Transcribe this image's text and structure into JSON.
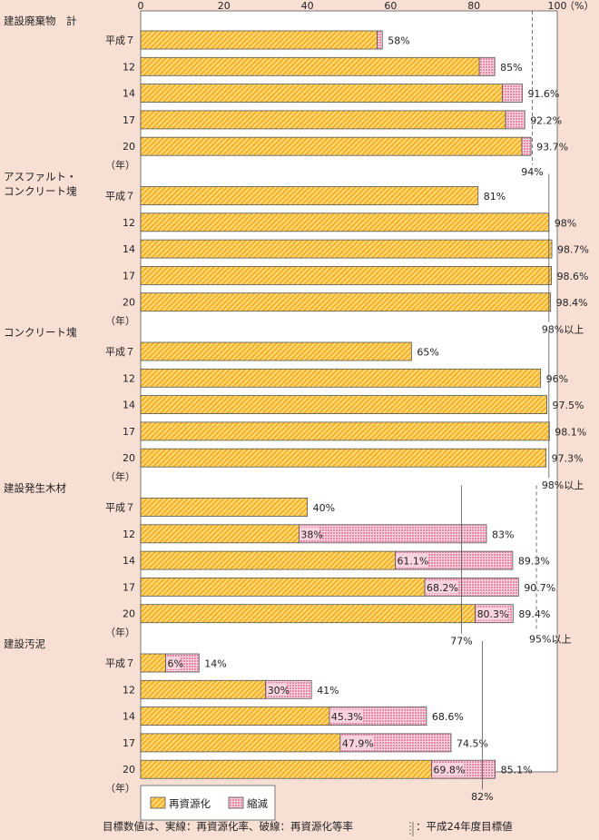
{
  "chart_data": {
    "type": "bar",
    "orientation": "horizontal",
    "stacked": true,
    "xlim": [
      0,
      100
    ],
    "xticks": [
      "0",
      "20",
      "40",
      "60",
      "80",
      "100"
    ],
    "xunit": "（%）",
    "year_unit": "（年）",
    "legend": {
      "placement": "bottom-left",
      "entries": [
        "再資源化",
        "縮減"
      ]
    },
    "colors": {
      "recycle": "#f6b52c",
      "reduction": "#ee87a6",
      "background": "#f8dfd4"
    },
    "groups": [
      {
        "name": "建設廃棄物　計",
        "name_lines": [
          "建設廃棄物　計"
        ],
        "years": [
          "平成７",
          "12",
          "14",
          "17",
          "20"
        ],
        "recycle": [
          56.8,
          81.3,
          86.8,
          87.6,
          91.5
        ],
        "total": [
          58,
          85,
          91.6,
          92.2,
          93.7
        ],
        "total_labels": [
          "58%",
          "85%",
          "91.6%",
          "92.2%",
          "93.7%"
        ],
        "recycle_labels": [],
        "targets": [
          {
            "value": 94,
            "style": "dashed",
            "label": "94%"
          }
        ]
      },
      {
        "name": "アスファルト・コンクリート塊",
        "name_lines": [
          "アスファルト・",
          "コンクリート塊"
        ],
        "years": [
          "平成７",
          "12",
          "14",
          "17",
          "20"
        ],
        "recycle": [
          81,
          98,
          98.7,
          98.6,
          98.4
        ],
        "total": [
          81,
          98,
          98.7,
          98.6,
          98.4
        ],
        "total_labels": [
          "81%",
          "98%",
          "98.7%",
          "98.6%",
          "98.4%"
        ],
        "recycle_labels": [],
        "targets": [
          {
            "value": 98,
            "style": "solid",
            "label": "98%以上"
          }
        ]
      },
      {
        "name": "コンクリート塊",
        "name_lines": [
          "コンクリート塊"
        ],
        "years": [
          "平成７",
          "12",
          "14",
          "17",
          "20"
        ],
        "recycle": [
          65,
          96,
          97.5,
          98.1,
          97.3
        ],
        "total": [
          65,
          96,
          97.5,
          98.1,
          97.3
        ],
        "total_labels": [
          "65%",
          "96%",
          "97.5%",
          "98.1%",
          "97.3%"
        ],
        "recycle_labels": [],
        "targets": [
          {
            "value": 98,
            "style": "solid",
            "label": "98%以上"
          }
        ]
      },
      {
        "name": "建設発生木材",
        "name_lines": [
          "建設発生木材"
        ],
        "years": [
          "平成７",
          "12",
          "14",
          "17",
          "20"
        ],
        "recycle": [
          40,
          38,
          61.1,
          68.2,
          80.3
        ],
        "total": [
          40,
          83,
          89.3,
          90.7,
          89.4
        ],
        "total_labels": [
          "40%",
          "83%",
          "89.3%",
          "90.7%",
          "89.4%"
        ],
        "recycle_labels": [
          "",
          "38%",
          "61.1%",
          "68.2%",
          "80.3%"
        ],
        "targets": [
          {
            "value": 77,
            "style": "solid",
            "label": "77%"
          },
          {
            "value": 95,
            "style": "dashed",
            "label": "95%以上"
          }
        ]
      },
      {
        "name": "建設汚泥",
        "name_lines": [
          "建設汚泥"
        ],
        "years": [
          "平成７",
          "12",
          "14",
          "17",
          "20"
        ],
        "recycle": [
          6,
          30,
          45.3,
          47.9,
          69.8
        ],
        "total": [
          14,
          41,
          68.6,
          74.5,
          85.1
        ],
        "total_labels": [
          "14%",
          "41%",
          "68.6%",
          "74.5%",
          "85.1%"
        ],
        "recycle_labels": [
          "6%",
          "30%",
          "45.3%",
          "47.9%",
          "69.8%"
        ],
        "targets": [
          {
            "value": 82,
            "style": "solid",
            "label": "82%"
          }
        ]
      }
    ]
  },
  "footnote": {
    "left": "目標数値は、実線：再資源化率、破線：再資源化等率",
    "right": "：平成24年度目標値"
  }
}
